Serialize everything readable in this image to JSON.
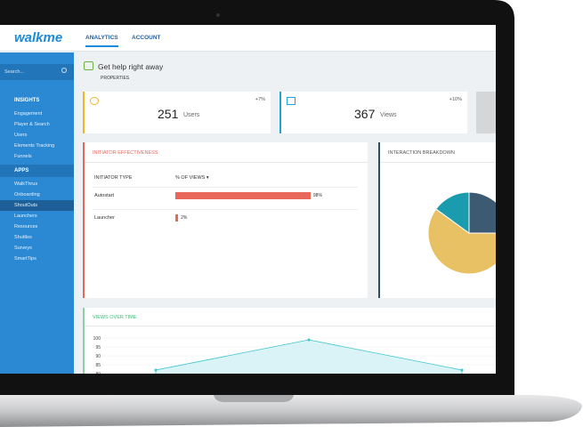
{
  "header": {
    "logo": "walkme",
    "tabs": [
      "ANALYTICS",
      "ACCOUNT"
    ]
  },
  "sidebar": {
    "search": "Search...",
    "sections": [
      {
        "title": "INSIGHTS",
        "items": [
          "Engagement",
          "Player & Search",
          "Users",
          "Elements Tracking",
          "Funnels"
        ]
      },
      {
        "title": "APPS",
        "items": [
          "WalkThrus",
          "Onboarding",
          "ShoutOuts",
          "Launchers",
          "Resources",
          "Shuttles",
          "Surveys",
          "SmartTips"
        ]
      }
    ]
  },
  "help": {
    "title": "Get help right away",
    "link": "PROPERTIES"
  },
  "stats": [
    {
      "value": 251,
      "label": "Users",
      "change": "+7%",
      "color": "#f0b429"
    },
    {
      "value": 367,
      "label": "Views",
      "change": "+10%",
      "color": "#1fa3d6"
    }
  ],
  "initiator": {
    "title": "INITIATOR EFFECTIVENESS",
    "columns": [
      "INITIATOR TYPE",
      "% OF VIEWS ▾"
    ],
    "rows": [
      {
        "name": "Autostart",
        "value": 98,
        "value_label": "98%"
      },
      {
        "name": "Launcher",
        "value": 2,
        "value_label": "2%"
      }
    ],
    "color": "#e8665a"
  },
  "interaction": {
    "title": "INTERACTION BREAKDOWN",
    "slices": [
      {
        "value": 25,
        "color": "#3d5a73"
      },
      {
        "value": 60,
        "color": "#e8c164"
      },
      {
        "value": 15,
        "color": "#1a9bae"
      }
    ]
  },
  "views": {
    "title": "VIEWS OVER TIME",
    "ylim": [
      75,
      100
    ],
    "yticks": [
      100,
      95,
      90,
      85,
      80
    ],
    "values": [
      82,
      99,
      82
    ],
    "color": "#3cc5cf"
  }
}
